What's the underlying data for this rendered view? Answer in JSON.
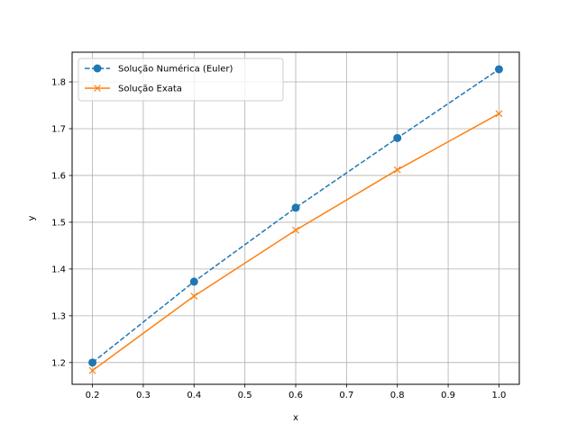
{
  "chart_data": {
    "type": "line",
    "title": "",
    "xlabel": "x",
    "ylabel": "y",
    "xlim": [
      0.16,
      1.04
    ],
    "ylim": [
      1.1535,
      1.8635
    ],
    "xticks": [
      "0.2",
      "0.3",
      "0.4",
      "0.5",
      "0.6",
      "0.7",
      "0.8",
      "0.9",
      "1.0"
    ],
    "yticks": [
      "1.2",
      "1.3",
      "1.4",
      "1.5",
      "1.6",
      "1.7",
      "1.8"
    ],
    "grid": true,
    "legend_position": "upper-left",
    "series": [
      {
        "name": "Solução Numérica (Euler)",
        "x": [
          0.2,
          0.4,
          0.6,
          0.8,
          1.0
        ],
        "values": [
          1.2,
          1.373,
          1.531,
          1.68,
          1.827
        ],
        "color": "#1f77b4",
        "line_style": "dashed",
        "marker": "circle"
      },
      {
        "name": "Solução Exata",
        "x": [
          0.2,
          0.4,
          0.6,
          0.8,
          1.0
        ],
        "values": [
          1.183,
          1.342,
          1.483,
          1.612,
          1.732
        ],
        "color": "#ff7f0e",
        "line_style": "solid",
        "marker": "x"
      }
    ]
  }
}
